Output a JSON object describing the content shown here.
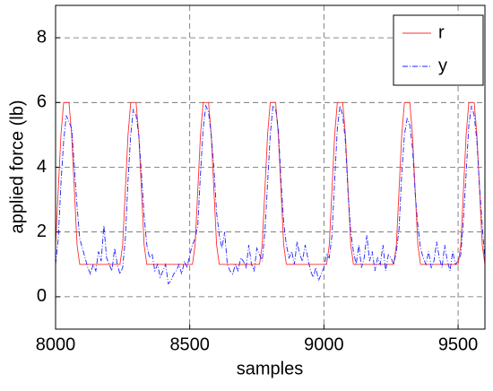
{
  "chart_data": {
    "type": "line",
    "x_label": "samples",
    "y_label": "applied force (lb)",
    "x": [
      8000,
      8010,
      8020,
      8030,
      8040,
      8050,
      8060,
      8070,
      8080,
      8090,
      8100,
      8110,
      8120,
      8130,
      8140,
      8150,
      8160,
      8170,
      8180,
      8190,
      8200,
      8210,
      8220,
      8230,
      8240,
      8250,
      8260,
      8270,
      8280,
      8290,
      8300,
      8310,
      8320,
      8330,
      8340,
      8350,
      8360,
      8370,
      8380,
      8390,
      8400,
      8410,
      8420,
      8430,
      8440,
      8450,
      8460,
      8470,
      8480,
      8490,
      8500,
      8510,
      8520,
      8530,
      8540,
      8550,
      8560,
      8570,
      8580,
      8590,
      8600,
      8610,
      8620,
      8630,
      8640,
      8650,
      8660,
      8670,
      8680,
      8690,
      8700,
      8710,
      8720,
      8730,
      8740,
      8750,
      8760,
      8770,
      8780,
      8790,
      8800,
      8810,
      8820,
      8830,
      8840,
      8850,
      8860,
      8870,
      8880,
      8890,
      8900,
      8910,
      8920,
      8930,
      8940,
      8950,
      8960,
      8970,
      8980,
      8990,
      9000,
      9010,
      9020,
      9030,
      9040,
      9050,
      9060,
      9070,
      9080,
      9090,
      9100,
      9110,
      9120,
      9130,
      9140,
      9150,
      9160,
      9170,
      9180,
      9190,
      9200,
      9210,
      9220,
      9230,
      9240,
      9250,
      9260,
      9270,
      9280,
      9290,
      9300,
      9310,
      9320,
      9330,
      9340,
      9350,
      9360,
      9370,
      9380,
      9390,
      9400,
      9410,
      9420,
      9430,
      9440,
      9450,
      9460,
      9470,
      9480,
      9490,
      9500,
      9510,
      9520,
      9530,
      9540,
      9550,
      9560,
      9570,
      9580,
      9590,
      9600
    ],
    "series": [
      {
        "name": "r",
        "color": "#ff3030",
        "dash": "solid",
        "values": [
          1.6,
          3.3,
          5,
          6,
          6,
          6,
          5,
          3.3,
          1.6,
          1,
          1,
          1,
          1,
          1,
          1,
          1,
          1,
          1,
          1,
          1,
          1,
          1,
          1,
          1,
          1,
          1.6,
          3.3,
          5,
          6,
          6,
          6,
          5,
          3.3,
          1.6,
          1,
          1,
          1,
          1,
          1,
          1,
          1,
          1,
          1,
          1,
          1,
          1,
          1,
          1,
          1,
          1,
          1,
          1,
          1.6,
          3.3,
          5,
          6,
          6,
          6,
          5,
          3.3,
          1.6,
          1,
          1,
          1,
          1,
          1,
          1,
          1,
          1,
          1,
          1,
          1,
          1,
          1,
          1,
          1,
          1,
          1.6,
          3.3,
          5,
          6,
          6,
          6,
          5,
          3.3,
          1.6,
          1,
          1,
          1,
          1,
          1,
          1,
          1,
          1,
          1,
          1,
          1,
          1,
          1,
          1,
          1,
          1,
          1.6,
          3.3,
          5,
          6,
          6,
          6,
          5,
          3.3,
          1.6,
          1,
          1,
          1,
          1,
          1,
          1,
          1,
          1,
          1,
          1,
          1,
          1,
          1,
          1,
          1,
          1,
          1.6,
          3.3,
          5,
          6,
          6,
          6,
          5,
          3.3,
          1.6,
          1,
          1,
          1,
          1,
          1,
          1,
          1,
          1,
          1,
          1,
          1,
          1,
          1,
          1,
          1,
          1.6,
          3.3,
          5,
          6,
          6,
          6,
          5,
          3.3,
          1.6,
          1
        ]
      },
      {
        "name": "y",
        "color": "#2020ff",
        "dash": "dashdot",
        "values": [
          1.0,
          1.8,
          3.5,
          4.8,
          5.6,
          5.4,
          5.2,
          4.0,
          2.8,
          1.8,
          1.5,
          1.2,
          0.9,
          0.7,
          1.0,
          0.8,
          1.4,
          1.1,
          2.2,
          1.2,
          1.0,
          0.8,
          1.5,
          1.0,
          0.7,
          0.9,
          1.8,
          3.6,
          5.0,
          5.8,
          5.6,
          5.0,
          3.8,
          2.5,
          1.6,
          1.2,
          1.3,
          0.8,
          1.0,
          0.6,
          0.8,
          1.0,
          0.4,
          0.5,
          0.7,
          0.8,
          1.0,
          0.7,
          1.1,
          0.9,
          1.3,
          1.6,
          1.8,
          2.2,
          3.8,
          5.2,
          5.9,
          5.7,
          5.0,
          4.0,
          2.6,
          1.9,
          1.5,
          2.0,
          1.0,
          0.8,
          0.7,
          1.0,
          0.8,
          1.2,
          1.1,
          0.9,
          1.6,
          1.0,
          0.8,
          1.5,
          1.3,
          1.1,
          2.0,
          3.5,
          5.0,
          5.9,
          5.8,
          5.2,
          3.6,
          2.3,
          1.6,
          1.2,
          1.4,
          1.0,
          1.7,
          1.3,
          1.1,
          1.6,
          1.2,
          0.8,
          0.6,
          0.9,
          0.5,
          0.7,
          0.9,
          1.3,
          1.2,
          1.9,
          3.6,
          5.2,
          5.9,
          5.6,
          4.8,
          3.2,
          2.0,
          1.4,
          1.0,
          1.6,
          0.9,
          1.2,
          1.9,
          1.1,
          1.4,
          0.8,
          1.2,
          1.0,
          1.6,
          0.8,
          1.3,
          1.2,
          1.0,
          1.4,
          2.1,
          3.8,
          5.0,
          5.5,
          5.3,
          4.6,
          3.2,
          2.2,
          1.5,
          1.2,
          1.0,
          1.4,
          0.9,
          1.1,
          1.7,
          1.2,
          0.9,
          1.6,
          1.1,
          0.8,
          1.4,
          1.0,
          1.1,
          1.3,
          2.4,
          3.8,
          5.3,
          5.9,
          5.6,
          4.8,
          3.4,
          2.2,
          1.1
        ]
      }
    ],
    "xlim": [
      8000,
      9600
    ],
    "xticks": [
      8000,
      8500,
      9000,
      9500
    ],
    "ylim": [
      -1,
      9
    ],
    "yticks": [
      0,
      2,
      4,
      6,
      8
    ],
    "grid": true,
    "legend": "upper right"
  }
}
